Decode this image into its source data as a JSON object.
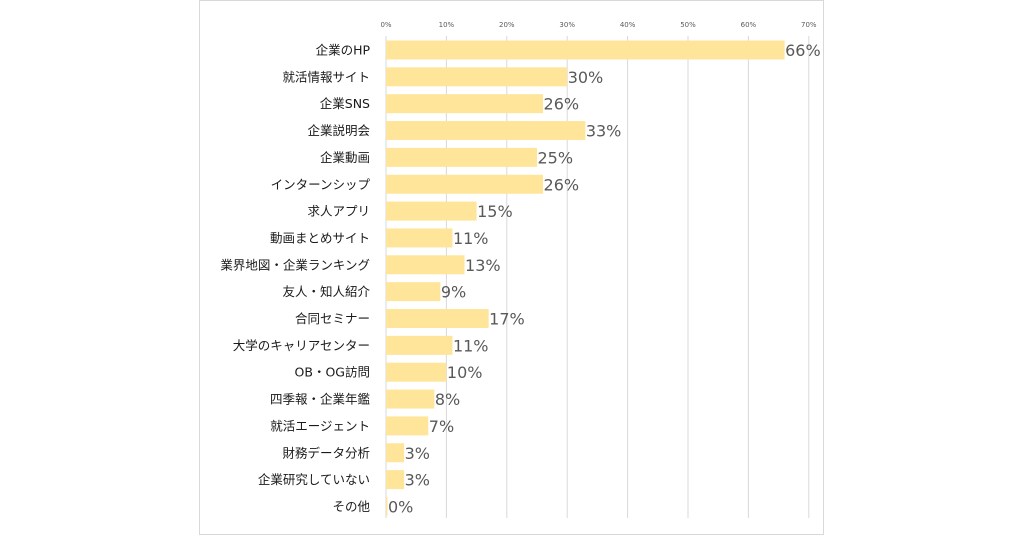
{
  "chart_data": {
    "type": "bar",
    "orientation": "horizontal",
    "title": "",
    "xlabel": "",
    "ylabel": "",
    "xlim": [
      0,
      70
    ],
    "x_ticks": [
      "0%",
      "10%",
      "20%",
      "30%",
      "40%",
      "50%",
      "60%",
      "70%"
    ],
    "grid": true,
    "bar_color": "#ffe599",
    "categories": [
      "企業のHP",
      "就活情報サイト",
      "企業SNS",
      "企業説明会",
      "企業動画",
      "インターンシップ",
      "求人アプリ",
      "動画まとめサイト",
      "業界地図・企業ランキング",
      "友人・知人紹介",
      "合同セミナー",
      "大学のキャリアセンター",
      "OB・OG訪問",
      "四季報・企業年鑑",
      "就活エージェント",
      "財務データ分析",
      "企業研究していない",
      "その他"
    ],
    "values": [
      66,
      30,
      26,
      33,
      25,
      26,
      15,
      11,
      13,
      9,
      17,
      11,
      10,
      8,
      7,
      3,
      3,
      0
    ],
    "value_labels": [
      "66%",
      "30%",
      "26%",
      "33%",
      "25%",
      "26%",
      "15%",
      "11%",
      "13%",
      "9%",
      "17%",
      "11%",
      "10%",
      "8%",
      "7%",
      "3%",
      "3%",
      "0%"
    ]
  }
}
